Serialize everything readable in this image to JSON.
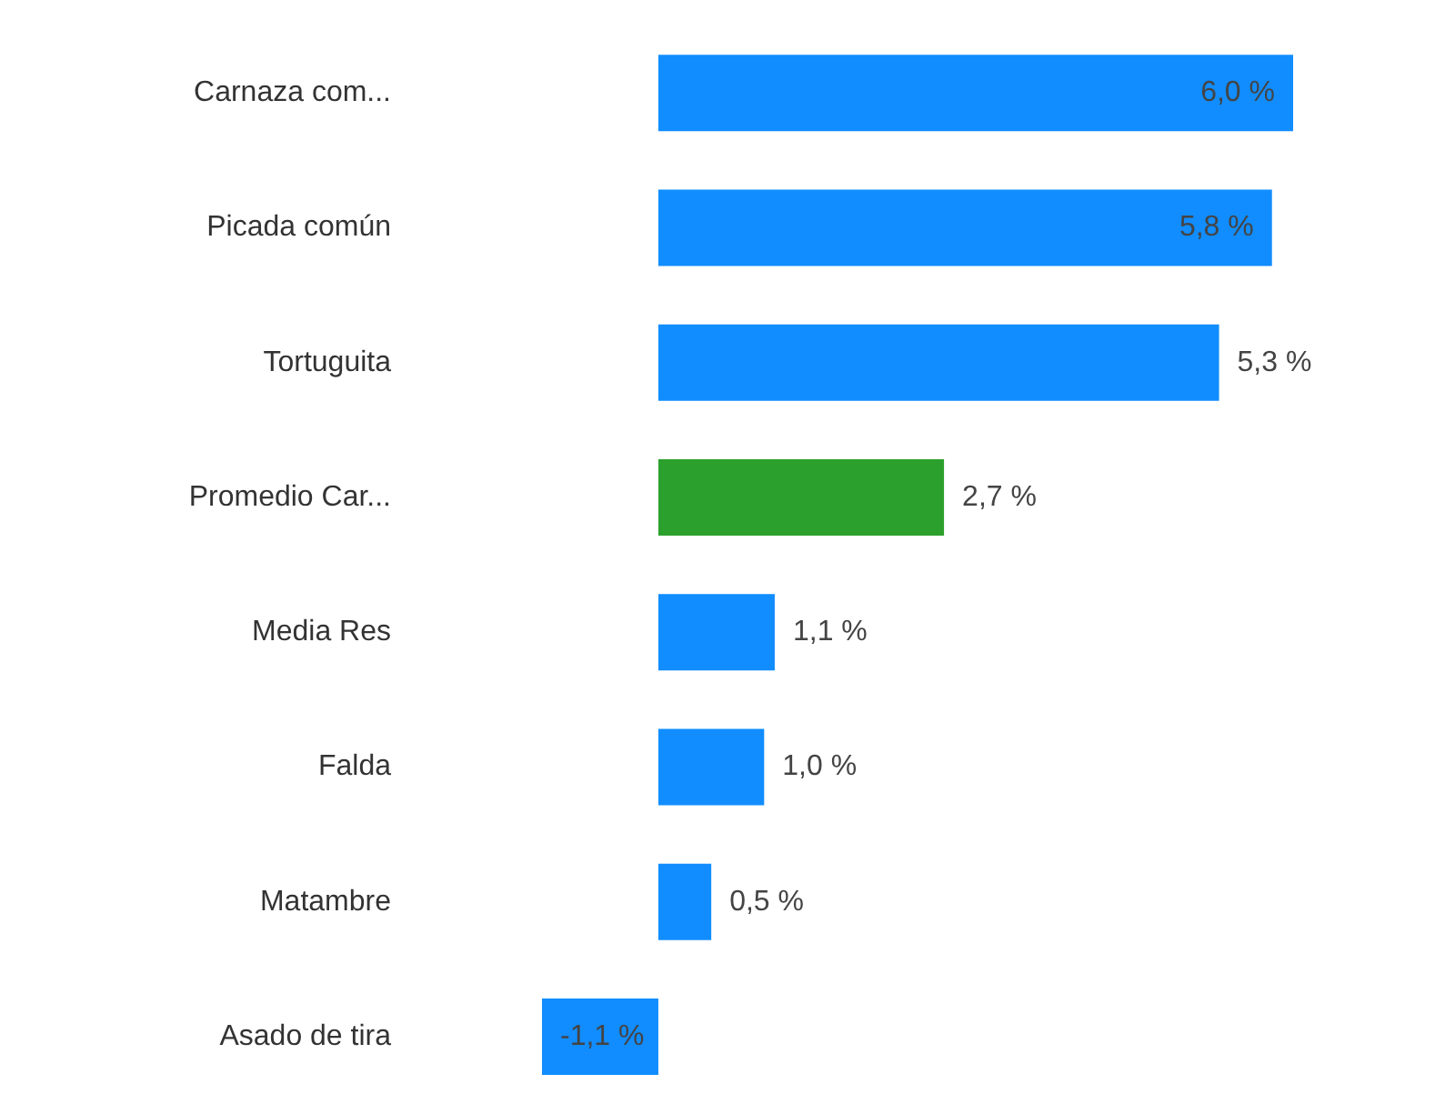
{
  "chart_data": {
    "type": "bar",
    "orientation": "horizontal",
    "categories": [
      "Carnaza com...",
      "Picada común",
      "Tortuguita",
      "Promedio Car...",
      "Media Res",
      "Falda",
      "Matambre",
      "Asado de tira"
    ],
    "values": [
      6.0,
      5.8,
      5.3,
      2.7,
      1.1,
      1.0,
      0.5,
      -1.1
    ],
    "colors": [
      "#118dff",
      "#118dff",
      "#118dff",
      "#2ca02c",
      "#118dff",
      "#118dff",
      "#118dff",
      "#118dff"
    ],
    "value_labels": [
      "6,0 %",
      "5,8 %",
      "5,3 %",
      "2,7 %",
      "1,1 %",
      "1,0 %",
      "0,5 %",
      "-1,1 %"
    ]
  }
}
